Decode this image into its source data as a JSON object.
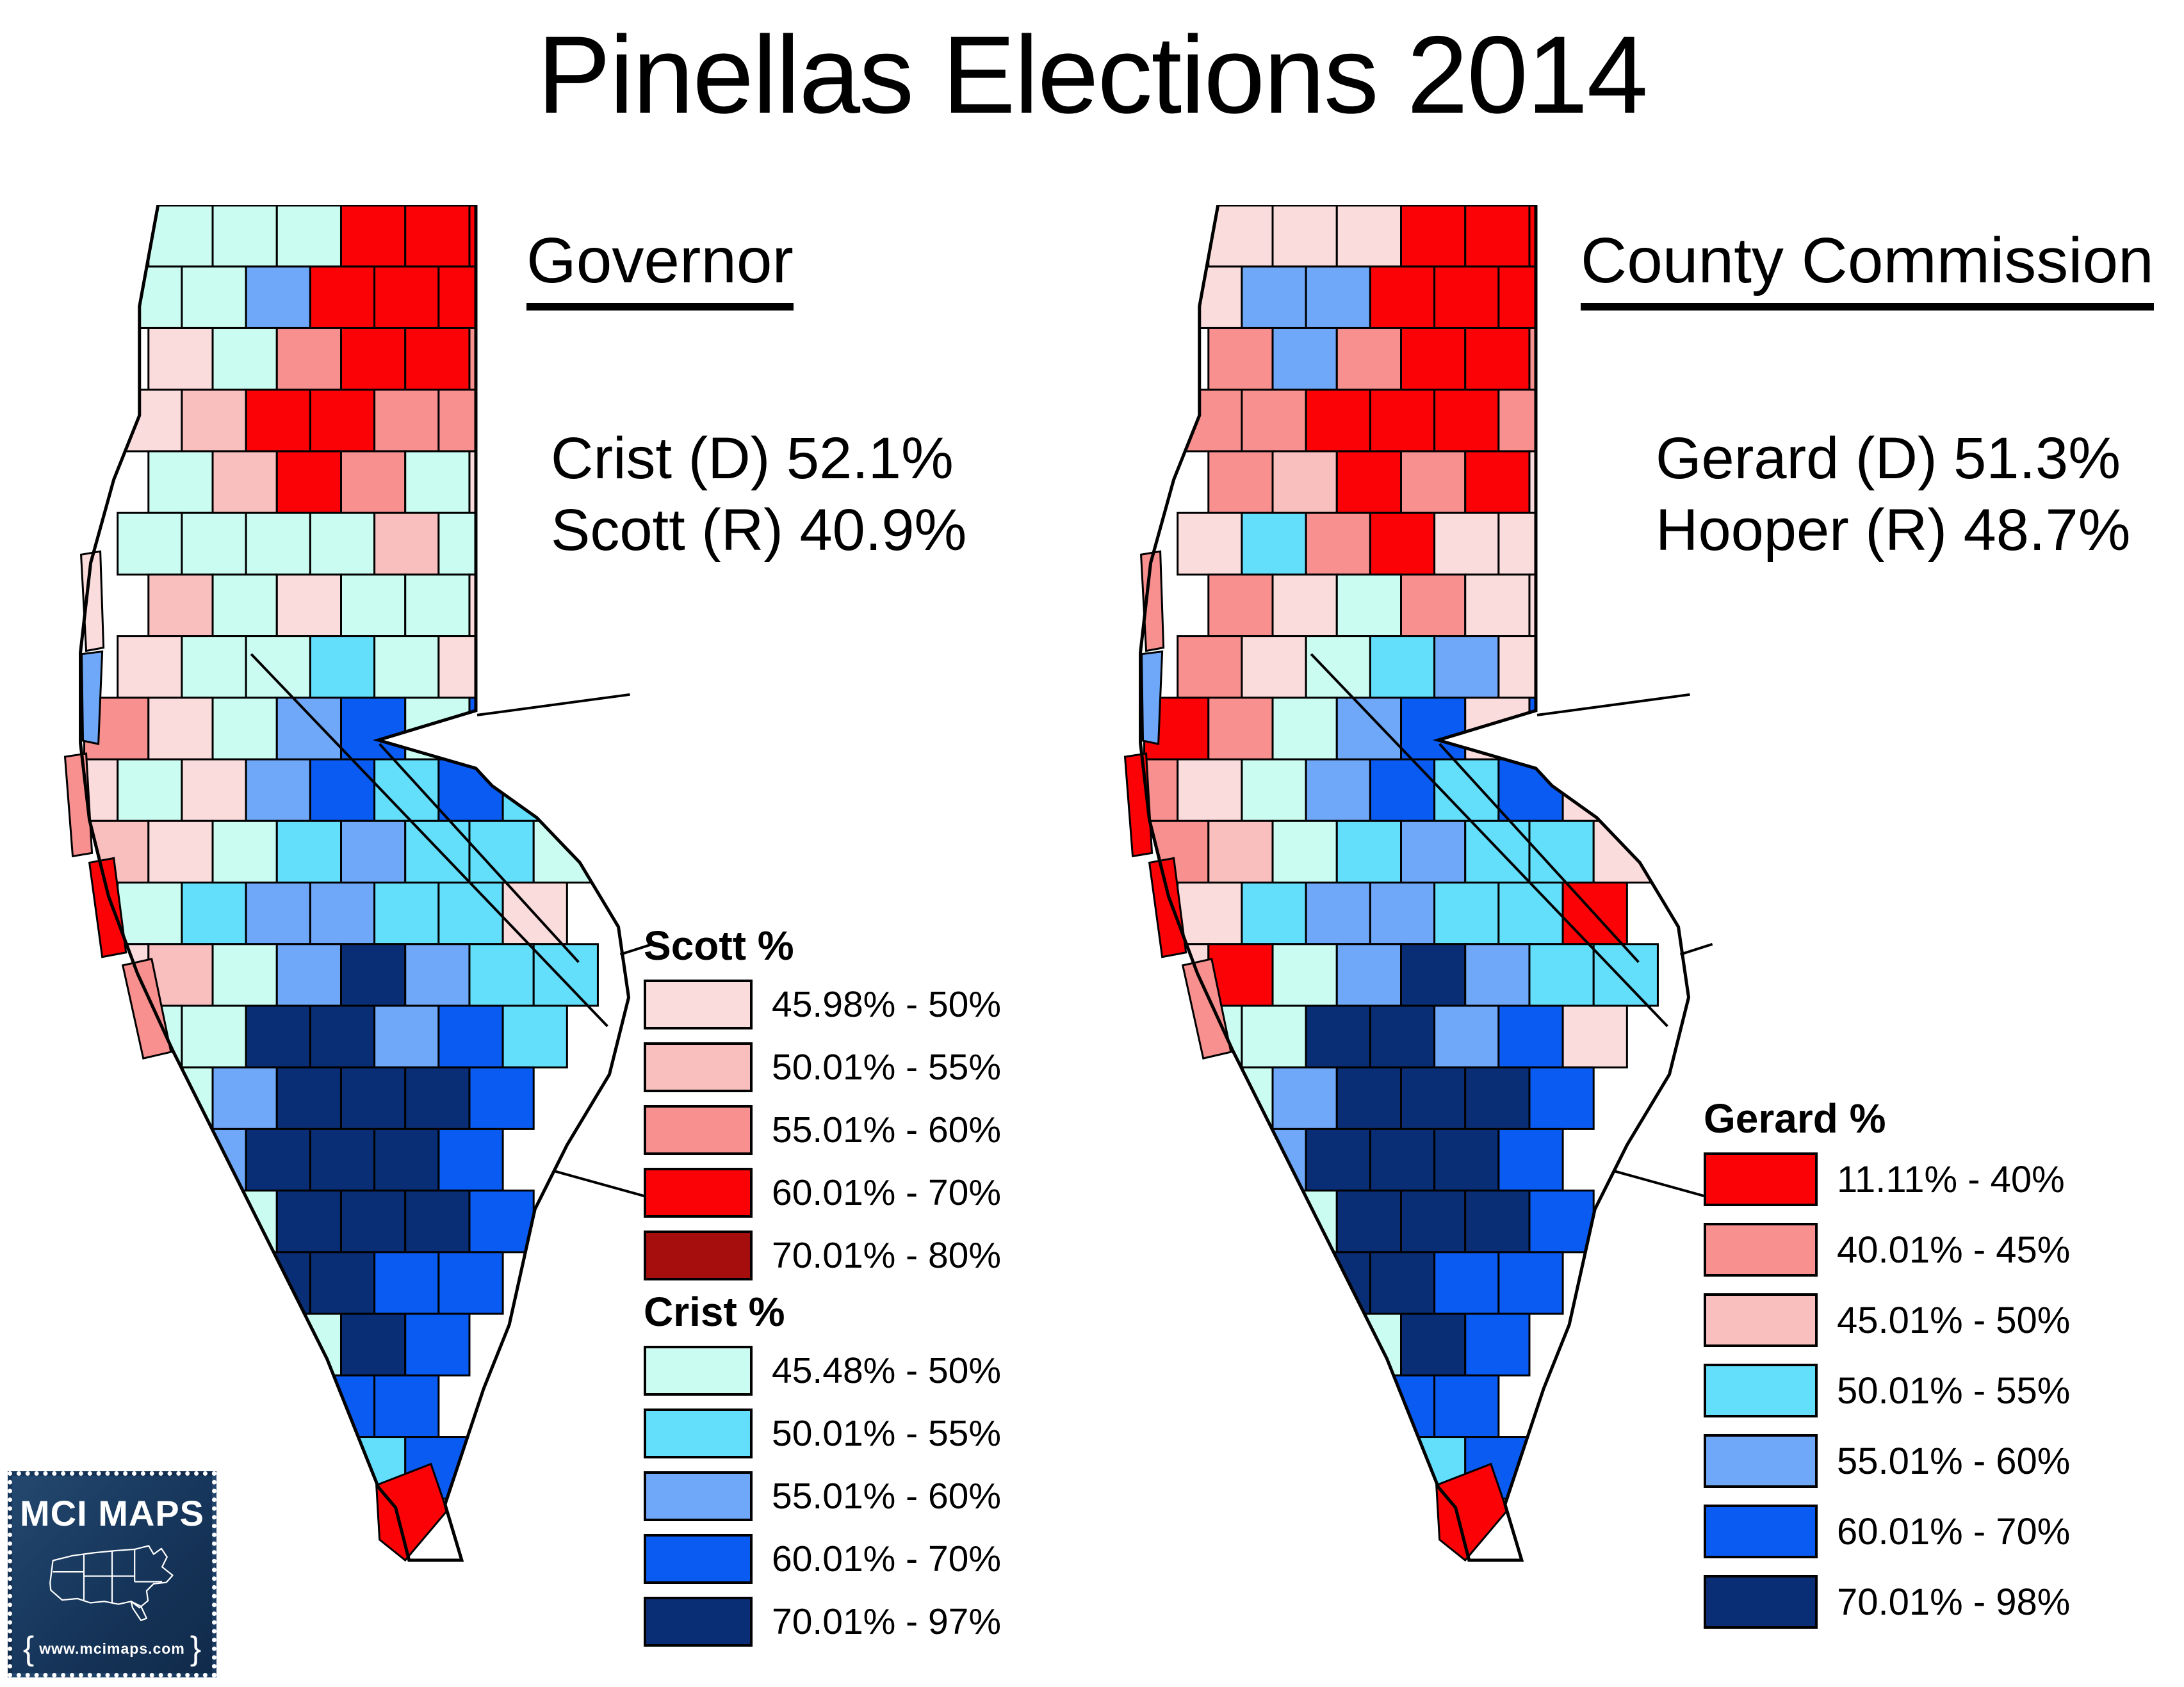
{
  "title": "Pinellas Elections 2014",
  "colors": {
    "letterMap": {
      "p": "#FBDCDC",
      "P": "#F9BEBE",
      "s": "#F8908F",
      "R": "#FB0207",
      "D": "#A60D0D",
      "c": "#CBFCF1",
      "C": "#63DFFC",
      "b": "#6FA8F9",
      "B": "#0A5BF2",
      "N": "#0A2E75",
      "w": "#FFFFFF"
    },
    "outline": "#000000",
    "logo_navy": "#16355A"
  },
  "maps": {
    "governor": {
      "heading": "Governor",
      "result_lines": [
        "Crist (D) 52.1%",
        "Scott (R) 40.9%"
      ],
      "grid": [
        "wwcccRRRww",
        "wwccbRRRww",
        "wwpcsRRsww",
        "wwpPRRssww",
        "wwcPRscpww",
        "wwccccPcww",
        "wwPcpccpww",
        "wwpccCcpww",
        "wspcbBcBww",
        "wpcpbBCBCw",
        "wPpcCbCCcw",
        "wpcCbbCCpw",
        "wpPcbNbCCw",
        "spccNNbBCw",
        "ppcbNNNBww",
        "pPpbNNNBww",
        "wPccNNNBww",
        "wpCcNNBBww",
        "wpPccNBwww",
        "wwPcCBBwww",
        "wwpPcCBwww",
        "wwwRRcwwww"
      ],
      "island_colors": [
        "p",
        "b",
        "s",
        "R",
        "s",
        "R"
      ],
      "legends": [
        {
          "title": "Scott %",
          "entries": [
            {
              "color": "#FBDCDC",
              "label": "45.98% - 50%"
            },
            {
              "color": "#F9BEBE",
              "label": "50.01% - 55%"
            },
            {
              "color": "#F8908F",
              "label": "55.01% - 60%"
            },
            {
              "color": "#FB0207",
              "label": "60.01% - 70%"
            },
            {
              "color": "#A60D0D",
              "label": "70.01% - 80%"
            }
          ]
        },
        {
          "title": "Crist %",
          "entries": [
            {
              "color": "#CBFCF1",
              "label": "45.48% - 50%"
            },
            {
              "color": "#63DFFC",
              "label": "50.01% - 55%"
            },
            {
              "color": "#6FA8F9",
              "label": "55.01% - 60%"
            },
            {
              "color": "#0A5BF2",
              "label": "60.01% - 70%"
            },
            {
              "color": "#0A2E75",
              "label": "70.01% - 97%"
            }
          ]
        }
      ]
    },
    "commission": {
      "heading": "County Commission",
      "result_lines": [
        "Gerard (D) 51.3%",
        "Hooper (R) 48.7%"
      ],
      "grid": [
        "wwpppRRRww",
        "wwpbbRRRww",
        "wwsbsRRsww",
        "wwssRRRsww",
        "wwsPRsRpww",
        "wwpCsRppww",
        "wwspcsppww",
        "wwspcCbpww",
        "wRscbBpBww",
        "wspcbBCBpw",
        "wsPcCbCCpw",
        "wspCbbCCRw",
        "wpRcbNbCCw",
        "sPccNNbBpw",
        "spcbNNNBww",
        "sPpbNNNBww",
        "wPccNNNBww",
        "wsCcNNBBww",
        "wpPccNBwww",
        "wwPcCBBwww",
        "wwpPcCBwww",
        "wwwRRswwww"
      ],
      "island_colors": [
        "s",
        "b",
        "R",
        "R",
        "s",
        "R"
      ],
      "legends": [
        {
          "title": "Gerard %",
          "entries": [
            {
              "color": "#FB0207",
              "label": "11.11% - 40%"
            },
            {
              "color": "#F8908F",
              "label": "40.01% - 45%"
            },
            {
              "color": "#F9BEBE",
              "label": "45.01% - 50%"
            },
            {
              "color": "#63DFFC",
              "label": "50.01% - 55%"
            },
            {
              "color": "#6FA8F9",
              "label": "55.01% - 60%"
            },
            {
              "color": "#0A5BF2",
              "label": "60.01% - 70%"
            },
            {
              "color": "#0A2E75",
              "label": "70.01% - 98%"
            }
          ]
        }
      ]
    }
  },
  "logo": {
    "name": "MCI MAPS",
    "url": "www.mcimaps.com",
    "brace_left": "{",
    "brace_right": "}"
  }
}
